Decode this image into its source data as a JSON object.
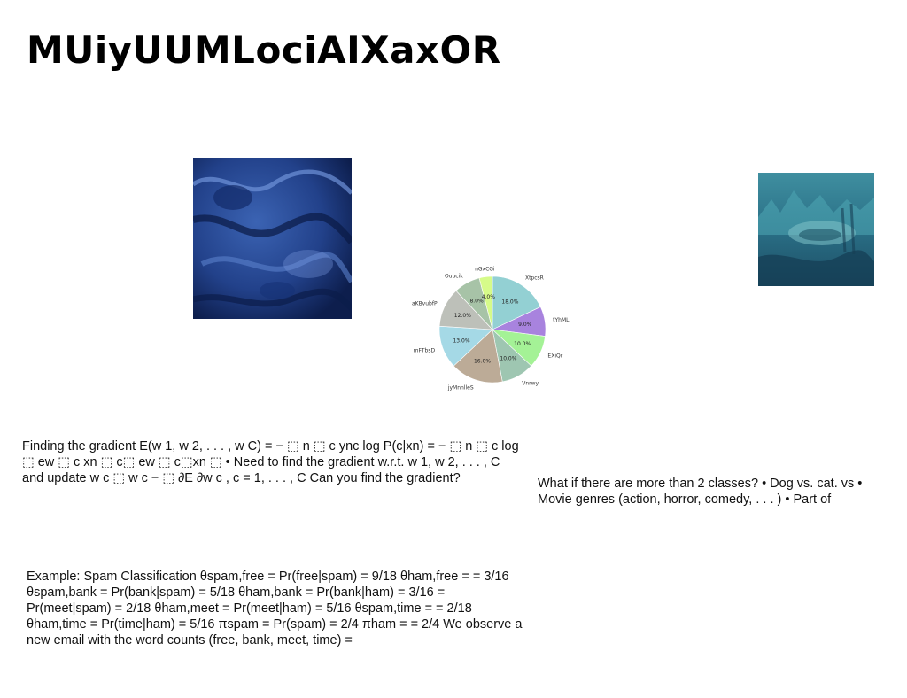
{
  "slide": {
    "title": "MUiyUUMLociAIXaxOR"
  },
  "images": {
    "left": {
      "icon": "blue-textured-relief-photo"
    },
    "right": {
      "icon": "teal-landscape-photo"
    }
  },
  "text_blocks": {
    "gradient": "Finding the gradient E(w 1, w 2, . . . , w C) = − ⬚ n ⬚ c ync log P(c|xn) = − ⬚ n ⬚ c log ⬚ ew ⬚ c xn ⬚ c⬚ ew ⬚ c⬚xn ⬚ • Need to find the gradient w.r.t. w 1, w 2, . . . , C and update w c ⬚ w c − ⬚ ∂E ∂w c , c = 1, . . . , C Can you find the gradient?",
    "classes": "What if there are more than 2 classes? • Dog vs. cat. vs • Movie genres (action, horror, comedy, . . . ) • Part of",
    "spam": "Example: Spam Classification θspam,free = Pr(free|spam) = 9/18 θham,free = = 3/16 θspam,bank = Pr(bank|spam) = 5/18 θham,bank = Pr(bank|ham) = 3/16 = Pr(meet|spam) = 2/18 θham,meet = Pr(meet|ham) = 5/16 θspam,time = = 2/18 θham,time = Pr(time|ham) = 5/16 πspam = Pr(spam) = 2/4 πham = = 2/4 We observe a new email with the word counts (free, bank, meet, time) ="
  },
  "chart_data": {
    "type": "pie",
    "start_angle_deg": 90,
    "direction": "clockwise",
    "slices": [
      {
        "label": "XtpcsR",
        "value": 18.0,
        "pct_label": "18.0%",
        "color": "#93d0d3"
      },
      {
        "label": "tYhML",
        "value": 9.0,
        "pct_label": "9.0%",
        "color": "#a883de"
      },
      {
        "label": "EXiQr",
        "value": 10.0,
        "pct_label": "10.0%",
        "color": "#a4f296"
      },
      {
        "label": "Vnrwy",
        "value": 10.0,
        "pct_label": "10.0%",
        "color": "#9ec6b1"
      },
      {
        "label": "jyMnnlleS",
        "value": 16.0,
        "pct_label": "16.0%",
        "color": "#bcab97"
      },
      {
        "label": "mFTbsD",
        "value": 13.0,
        "pct_label": "13.0%",
        "color": "#a5d9e6"
      },
      {
        "label": "aKBvubfP",
        "value": 12.0,
        "pct_label": "12.0%",
        "color": "#bdc0b9"
      },
      {
        "label": "Ouucik",
        "value": 8.0,
        "pct_label": "8.0%",
        "color": "#a7c3a7"
      },
      {
        "label": "nGxCGi",
        "value": 4.0,
        "pct_label": "4.0%",
        "color": "#d6fb89"
      }
    ]
  }
}
